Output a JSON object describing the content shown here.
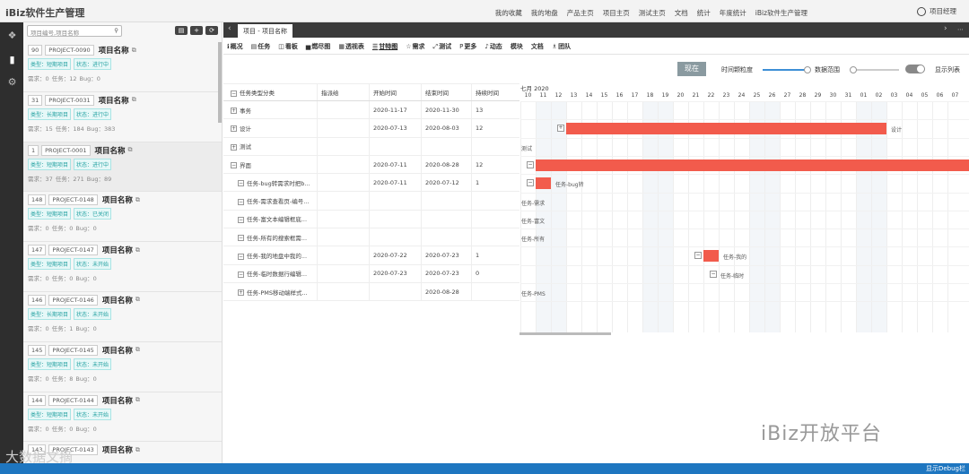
{
  "app": {
    "title": "iBiz软件生产管理",
    "user": "项目经理"
  },
  "topnav": [
    "我的收藏",
    "我的地盘",
    "产品主页",
    "项目主页",
    "测试主页",
    "文档",
    "统计",
    "年度统计",
    "iBiz软件生产管理"
  ],
  "sidebar": {
    "search_placeholder": "项目编号,项目名称",
    "buttons": [
      "▤",
      "+",
      "⟳"
    ]
  },
  "projects": [
    {
      "num": "90",
      "code": "PROJECT-0090",
      "name": "项目名称",
      "type": "类型：短期项目",
      "status": "状态：进行中",
      "stats": "需求：0    任务：12    Bug：0"
    },
    {
      "num": "31",
      "code": "PROJECT-0031",
      "name": "项目名称",
      "type": "类型：长期项目",
      "status": "状态：进行中",
      "stats": "需求：15    任务：184    Bug：383"
    },
    {
      "num": "1",
      "code": "PROJECT-0001",
      "name": "项目名称",
      "type": "类型：短期项目",
      "status": "状态：进行中",
      "stats": "需求：37    任务：271    Bug：89"
    },
    {
      "num": "148",
      "code": "PROJECT-0148",
      "name": "项目名称",
      "type": "类型：短期项目",
      "status": "状态：已关闭",
      "stats": "需求：0    任务：0    Bug：0"
    },
    {
      "num": "147",
      "code": "PROJECT-0147",
      "name": "项目名称",
      "type": "类型：短期项目",
      "status": "状态：未开始",
      "stats": "需求：0    任务：0    Bug：0"
    },
    {
      "num": "146",
      "code": "PROJECT-0146",
      "name": "项目名称",
      "type": "类型：长期项目",
      "status": "状态：未开始",
      "stats": "需求：0    任务：1    Bug：0"
    },
    {
      "num": "145",
      "code": "PROJECT-0145",
      "name": "项目名称",
      "type": "类型：短期项目",
      "status": "状态：未开始",
      "stats": "需求：0    任务：8    Bug：0"
    },
    {
      "num": "144",
      "code": "PROJECT-0144",
      "name": "项目名称",
      "type": "类型：短期项目",
      "status": "状态：未开始",
      "stats": "需求：0    任务：0    Bug：0"
    },
    {
      "num": "143",
      "code": "PROJECT-0143",
      "name": "项目名称",
      "type": "",
      "status": "",
      "stats": ""
    }
  ],
  "tab": {
    "label": "项目 - 项目名称"
  },
  "toolbar": [
    {
      "icon": "ℹ",
      "label": "概况"
    },
    {
      "icon": "▤",
      "label": "任务"
    },
    {
      "icon": "◫",
      "label": "看板"
    },
    {
      "icon": "▅",
      "label": "燃尽图"
    },
    {
      "icon": "▦",
      "label": "透视表"
    },
    {
      "icon": "☰",
      "label": "甘特图"
    },
    {
      "icon": "☆",
      "label": "需求"
    },
    {
      "icon": "⤢",
      "label": "测试"
    },
    {
      "icon": "P",
      "label": "更多"
    },
    {
      "icon": "♪",
      "label": "动态"
    },
    {
      "icon": "",
      "label": "模块"
    },
    {
      "icon": "",
      "label": "文档"
    },
    {
      "icon": "♗",
      "label": "团队"
    }
  ],
  "controls": {
    "now": "现在",
    "granularity": "时间颗粒度",
    "range": "数据范围",
    "show_list": "显示列表"
  },
  "grid": {
    "headers": [
      "任务类型分类",
      "指派给",
      "开始时间",
      "结束时间",
      "持续时间"
    ],
    "rows": [
      {
        "toggle": "+",
        "name": "事务",
        "assignee": "",
        "start": "2020-11-17",
        "end": "2020-11-30",
        "duration": "13",
        "sub": false
      },
      {
        "toggle": "+",
        "name": "设计",
        "assignee": "",
        "start": "2020-07-13",
        "end": "2020-08-03",
        "duration": "12",
        "sub": false
      },
      {
        "toggle": "+",
        "name": "测试",
        "assignee": "",
        "start": "",
        "end": "",
        "duration": "",
        "sub": false
      },
      {
        "toggle": "−",
        "name": "界面",
        "assignee": "",
        "start": "2020-07-11",
        "end": "2020-08-28",
        "duration": "12",
        "sub": false
      },
      {
        "toggle": "−",
        "name": "任务-bug转需求时把b...",
        "assignee": "",
        "start": "2020-07-11",
        "end": "2020-07-12",
        "duration": "1",
        "sub": true
      },
      {
        "toggle": "−",
        "name": "任务-需求查看页-编号...",
        "assignee": "",
        "start": "",
        "end": "",
        "duration": "",
        "sub": true
      },
      {
        "toggle": "−",
        "name": "任务-富文本编辑框底...",
        "assignee": "",
        "start": "",
        "end": "",
        "duration": "",
        "sub": true
      },
      {
        "toggle": "−",
        "name": "任务-所有的搜索框需...",
        "assignee": "",
        "start": "",
        "end": "",
        "duration": "",
        "sub": true
      },
      {
        "toggle": "−",
        "name": "任务-我的地盘中我的...",
        "assignee": "",
        "start": "2020-07-22",
        "end": "2020-07-23",
        "duration": "1",
        "sub": true
      },
      {
        "toggle": "−",
        "name": "任务-临时数据行编辑...",
        "assignee": "",
        "start": "2020-07-23",
        "end": "2020-07-23",
        "duration": "0",
        "sub": true
      },
      {
        "toggle": "+",
        "name": "任务-PMS移动端样式...",
        "assignee": "",
        "start": "",
        "end": "2020-08-28",
        "duration": "",
        "sub": true
      }
    ]
  },
  "gantt": {
    "month": "七月 2020",
    "days": [
      "10",
      "11",
      "12",
      "13",
      "14",
      "15",
      "16",
      "17",
      "18",
      "19",
      "20",
      "21",
      "22",
      "23",
      "24",
      "25",
      "26",
      "27",
      "28",
      "29",
      "30",
      "31",
      "01",
      "02",
      "03",
      "04",
      "05",
      "06",
      "07"
    ],
    "weekend_days": [
      "11",
      "12",
      "18",
      "19",
      "25",
      "26",
      "01",
      "02"
    ],
    "bars": [
      {
        "row": 1,
        "start": "13",
        "end_label": "设计",
        "label": "设计",
        "toggle": "+",
        "span_days": 21
      },
      {
        "row": 3,
        "start": "11",
        "label": "",
        "toggle": "−",
        "span_days": 29
      },
      {
        "row": 4,
        "start": "11",
        "label": "任务-bug转",
        "toggle": "−",
        "span_days": 1
      },
      {
        "row": 8,
        "start": "22",
        "label": "任务-我的",
        "toggle": "−",
        "span_days": 1
      },
      {
        "row": 9,
        "start": "23",
        "label": "任务-临时",
        "toggle": "−",
        "span_days": 0
      }
    ],
    "side_labels": [
      {
        "row": 2,
        "label": "测试"
      },
      {
        "row": 5,
        "label": "任务-需求"
      },
      {
        "row": 6,
        "label": "任务-富文"
      },
      {
        "row": 7,
        "label": "任务-所有"
      },
      {
        "row": 10,
        "label": "任务-PMS"
      }
    ]
  },
  "watermark": "iBiz开放平台",
  "watermark_left": "大数据文摘",
  "statusbar": "显示Debug栏"
}
